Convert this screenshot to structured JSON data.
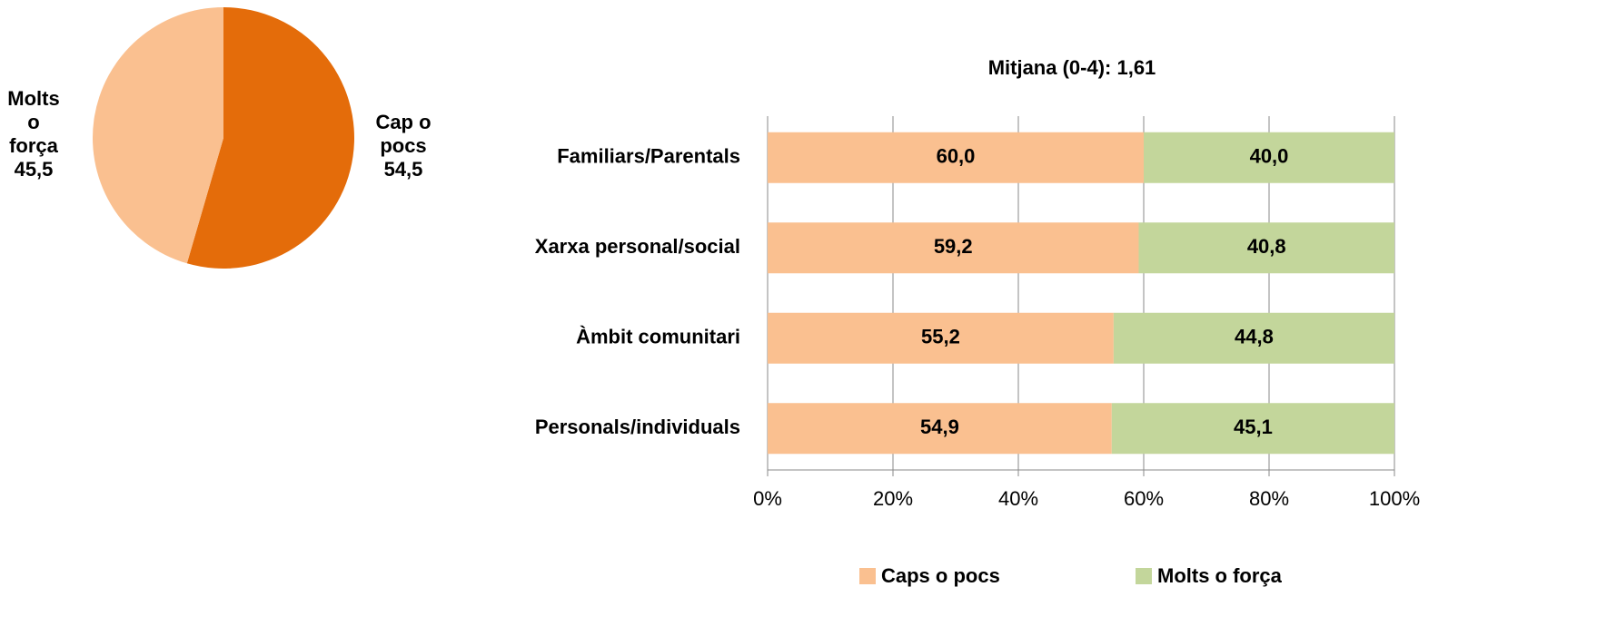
{
  "chart_data": [
    {
      "type": "pie",
      "categories": [
        "Cap o pocs",
        "Molts o força"
      ],
      "values": [
        54.5,
        45.5
      ],
      "value_labels": [
        "54,5",
        "45,5"
      ],
      "colors": [
        "#e46c0a",
        "#fac090"
      ]
    },
    {
      "type": "stacked-bar-horizontal",
      "title": "Mitjana (0-4):  1,61",
      "categories": [
        "Familiars/Parentals",
        "Xarxa personal/social",
        "Àmbit comunitari",
        "Personals/individuals"
      ],
      "series": [
        {
          "name": "Caps o pocs",
          "color": "#fac090",
          "values": [
            60.0,
            59.2,
            55.2,
            54.9
          ],
          "value_labels": [
            "60,0",
            "59,2",
            "55,2",
            "54,9"
          ]
        },
        {
          "name": "Molts o força",
          "color": "#c3d69b",
          "values": [
            40.0,
            40.8,
            44.8,
            45.1
          ],
          "value_labels": [
            "40,0",
            "40,8",
            "44,8",
            "45,1"
          ]
        }
      ],
      "xlim": [
        0,
        100
      ],
      "xticks": [
        {
          "value": 0,
          "label": "0%"
        },
        {
          "value": 20,
          "label": "20%"
        },
        {
          "value": 40,
          "label": "40%"
        },
        {
          "value": 60,
          "label": "60%"
        },
        {
          "value": 80,
          "label": "80%"
        },
        {
          "value": 100,
          "label": "100%"
        }
      ],
      "grid": true,
      "legend": "bottom"
    }
  ]
}
